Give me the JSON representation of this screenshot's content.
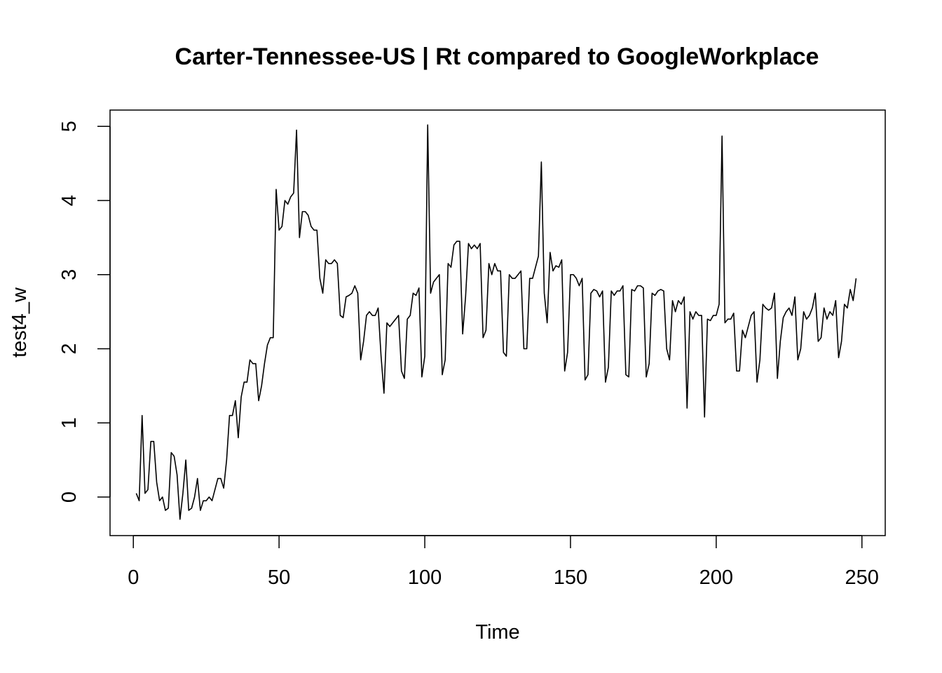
{
  "chart_data": {
    "type": "line",
    "title": "Carter-Tennessee-US | Rt compared to GoogleWorkplace",
    "xlabel": "Time",
    "ylabel": "test4_w",
    "xlim": [
      -8,
      258
    ],
    "ylim": [
      -0.52,
      5.22
    ],
    "xticks": [
      0,
      50,
      100,
      150,
      200,
      250
    ],
    "yticks": [
      0,
      1,
      2,
      3,
      4,
      5
    ],
    "grid": false,
    "line_color": "#000000",
    "x_start": 1,
    "series": [
      {
        "values": [
          0.05,
          -0.05,
          1.1,
          0.05,
          0.1,
          0.75,
          0.75,
          0.2,
          -0.05,
          0.0,
          -0.18,
          -0.15,
          0.6,
          0.55,
          0.3,
          -0.3,
          0.05,
          0.5,
          -0.18,
          -0.15,
          0.0,
          0.25,
          -0.18,
          -0.05,
          -0.05,
          0.0,
          -0.05,
          0.1,
          0.25,
          0.25,
          0.12,
          0.5,
          1.1,
          1.1,
          1.3,
          0.8,
          1.35,
          1.55,
          1.55,
          1.85,
          1.8,
          1.8,
          1.3,
          1.5,
          1.8,
          2.05,
          2.15,
          2.15,
          4.15,
          3.6,
          3.65,
          4.0,
          3.95,
          4.05,
          4.1,
          4.95,
          3.5,
          3.85,
          3.85,
          3.8,
          3.65,
          3.6,
          3.6,
          2.95,
          2.75,
          3.2,
          3.15,
          3.15,
          3.2,
          3.15,
          2.45,
          2.42,
          2.7,
          2.72,
          2.75,
          2.85,
          2.75,
          1.85,
          2.1,
          2.45,
          2.5,
          2.45,
          2.45,
          2.55,
          1.9,
          1.4,
          2.35,
          2.3,
          2.35,
          2.4,
          2.45,
          1.7,
          1.6,
          2.4,
          2.45,
          2.75,
          2.72,
          2.82,
          1.62,
          1.9,
          5.02,
          2.75,
          2.9,
          2.95,
          3.0,
          1.65,
          1.85,
          3.15,
          3.1,
          3.4,
          3.45,
          3.45,
          2.2,
          2.7,
          3.42,
          3.35,
          3.4,
          3.35,
          3.42,
          2.15,
          2.25,
          3.15,
          3.0,
          3.15,
          3.05,
          3.05,
          1.95,
          1.9,
          3.0,
          2.95,
          2.95,
          3.0,
          3.05,
          2.0,
          2.0,
          2.95,
          2.95,
          3.1,
          3.25,
          4.52,
          2.75,
          2.35,
          3.3,
          3.05,
          3.12,
          3.1,
          3.2,
          1.7,
          1.95,
          3.0,
          3.0,
          2.95,
          2.85,
          2.95,
          1.58,
          1.65,
          2.75,
          2.8,
          2.78,
          2.7,
          2.78,
          1.55,
          1.75,
          2.78,
          2.72,
          2.78,
          2.78,
          2.85,
          1.65,
          1.62,
          2.8,
          2.78,
          2.85,
          2.85,
          2.82,
          1.62,
          1.8,
          2.75,
          2.72,
          2.78,
          2.8,
          2.78,
          2.0,
          1.85,
          2.65,
          2.5,
          2.65,
          2.6,
          2.7,
          1.2,
          2.5,
          2.4,
          2.5,
          2.45,
          2.45,
          1.08,
          2.4,
          2.38,
          2.45,
          2.45,
          2.6,
          4.87,
          2.35,
          2.4,
          2.4,
          2.48,
          1.7,
          1.7,
          2.25,
          2.15,
          2.3,
          2.45,
          2.5,
          1.55,
          1.85,
          2.6,
          2.55,
          2.52,
          2.55,
          2.75,
          1.6,
          2.1,
          2.42,
          2.5,
          2.55,
          2.45,
          2.7,
          1.85,
          2.0,
          2.5,
          2.4,
          2.45,
          2.55,
          2.75,
          2.1,
          2.15,
          2.55,
          2.4,
          2.5,
          2.45,
          2.65,
          1.88,
          2.1,
          2.6,
          2.55,
          2.8,
          2.65,
          2.95
        ]
      }
    ]
  }
}
